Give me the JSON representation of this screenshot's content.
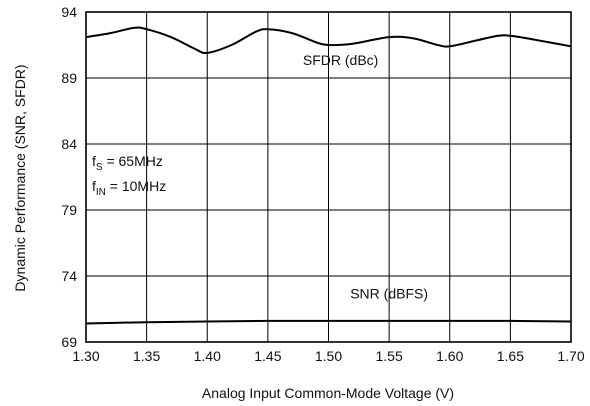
{
  "chart_data": {
    "type": "line",
    "title": "",
    "xlabel": "Analog Input Common-Mode Voltage (V)",
    "ylabel": "Dynamic Performance (SNR, SFDR)",
    "xlim": [
      1.3,
      1.7
    ],
    "ylim": [
      69,
      94
    ],
    "xticks": [
      "1.30",
      "1.35",
      "1.40",
      "1.45",
      "1.50",
      "1.55",
      "1.60",
      "1.65",
      "1.70"
    ],
    "yticks": [
      "69",
      "74",
      "79",
      "84",
      "89",
      "94"
    ],
    "grid": true,
    "conditions": {
      "fs": {
        "main": "f",
        "sub": "S",
        "rest": " = 65MHz"
      },
      "fin": {
        "main": "f",
        "sub": "IN",
        "rest": " = 10MHz"
      }
    },
    "series": [
      {
        "name": "SFDR (dBc)",
        "color": "#000000",
        "x": [
          1.3,
          1.32,
          1.34,
          1.35,
          1.37,
          1.39,
          1.4,
          1.42,
          1.44,
          1.45,
          1.47,
          1.49,
          1.5,
          1.52,
          1.55,
          1.57,
          1.59,
          1.6,
          1.62,
          1.64,
          1.65,
          1.67,
          1.7
        ],
        "values": [
          92.1,
          92.4,
          92.8,
          92.7,
          92.1,
          91.2,
          90.9,
          91.5,
          92.5,
          92.7,
          92.4,
          91.7,
          91.5,
          91.6,
          92.1,
          92.0,
          91.5,
          91.4,
          91.8,
          92.2,
          92.2,
          91.9,
          91.4
        ]
      },
      {
        "name": "SNR (dBFS)",
        "color": "#000000",
        "x": [
          1.3,
          1.35,
          1.4,
          1.45,
          1.5,
          1.55,
          1.6,
          1.65,
          1.7
        ],
        "values": [
          70.4,
          70.5,
          70.55,
          70.6,
          70.6,
          70.6,
          70.6,
          70.6,
          70.55
        ]
      }
    ]
  }
}
